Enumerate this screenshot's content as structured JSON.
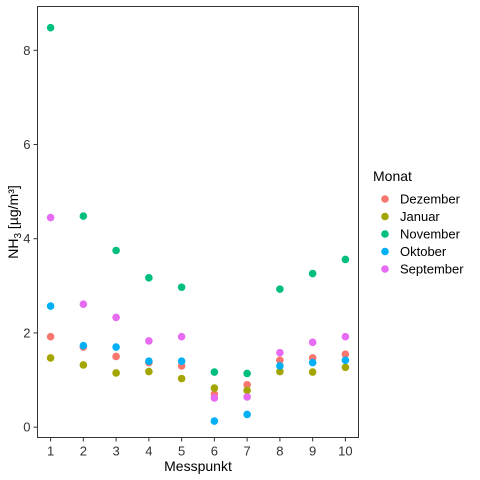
{
  "chart_data": {
    "type": "scatter",
    "xlabel": "Messpunkt",
    "ylabel_main": "NH",
    "ylabel_sub": "3",
    "ylabel_unit": " [µg/m³]",
    "x": [
      1,
      2,
      3,
      4,
      5,
      6,
      7,
      8,
      9,
      10
    ],
    "xlim": [
      0.6,
      10.4
    ],
    "ylim": [
      -0.22,
      8.93
    ],
    "yticks": [
      0,
      2,
      4,
      6,
      8
    ],
    "grid": false,
    "legend": {
      "title": "Monat",
      "position": "right"
    },
    "series": [
      {
        "name": "Dezember",
        "color": "#F8766D",
        "values": [
          1.92,
          1.7,
          1.5,
          1.37,
          1.3,
          0.7,
          0.9,
          1.42,
          1.47,
          1.55
        ]
      },
      {
        "name": "Januar",
        "color": "#A3A500",
        "values": [
          1.47,
          1.32,
          1.15,
          1.18,
          1.03,
          0.83,
          0.78,
          1.18,
          1.17,
          1.27
        ]
      },
      {
        "name": "November",
        "color": "#00BF7D",
        "values": [
          8.48,
          4.48,
          3.75,
          3.17,
          2.97,
          1.17,
          1.14,
          2.93,
          3.26,
          3.56
        ]
      },
      {
        "name": "Oktober",
        "color": "#00B0F6",
        "values": [
          2.57,
          1.73,
          1.7,
          1.4,
          1.4,
          0.13,
          0.27,
          1.3,
          1.37,
          1.42
        ]
      },
      {
        "name": "September",
        "color": "#E76BF3",
        "values": [
          4.45,
          2.61,
          2.33,
          1.83,
          1.92,
          0.62,
          0.64,
          1.58,
          1.8,
          1.92
        ]
      }
    ]
  }
}
